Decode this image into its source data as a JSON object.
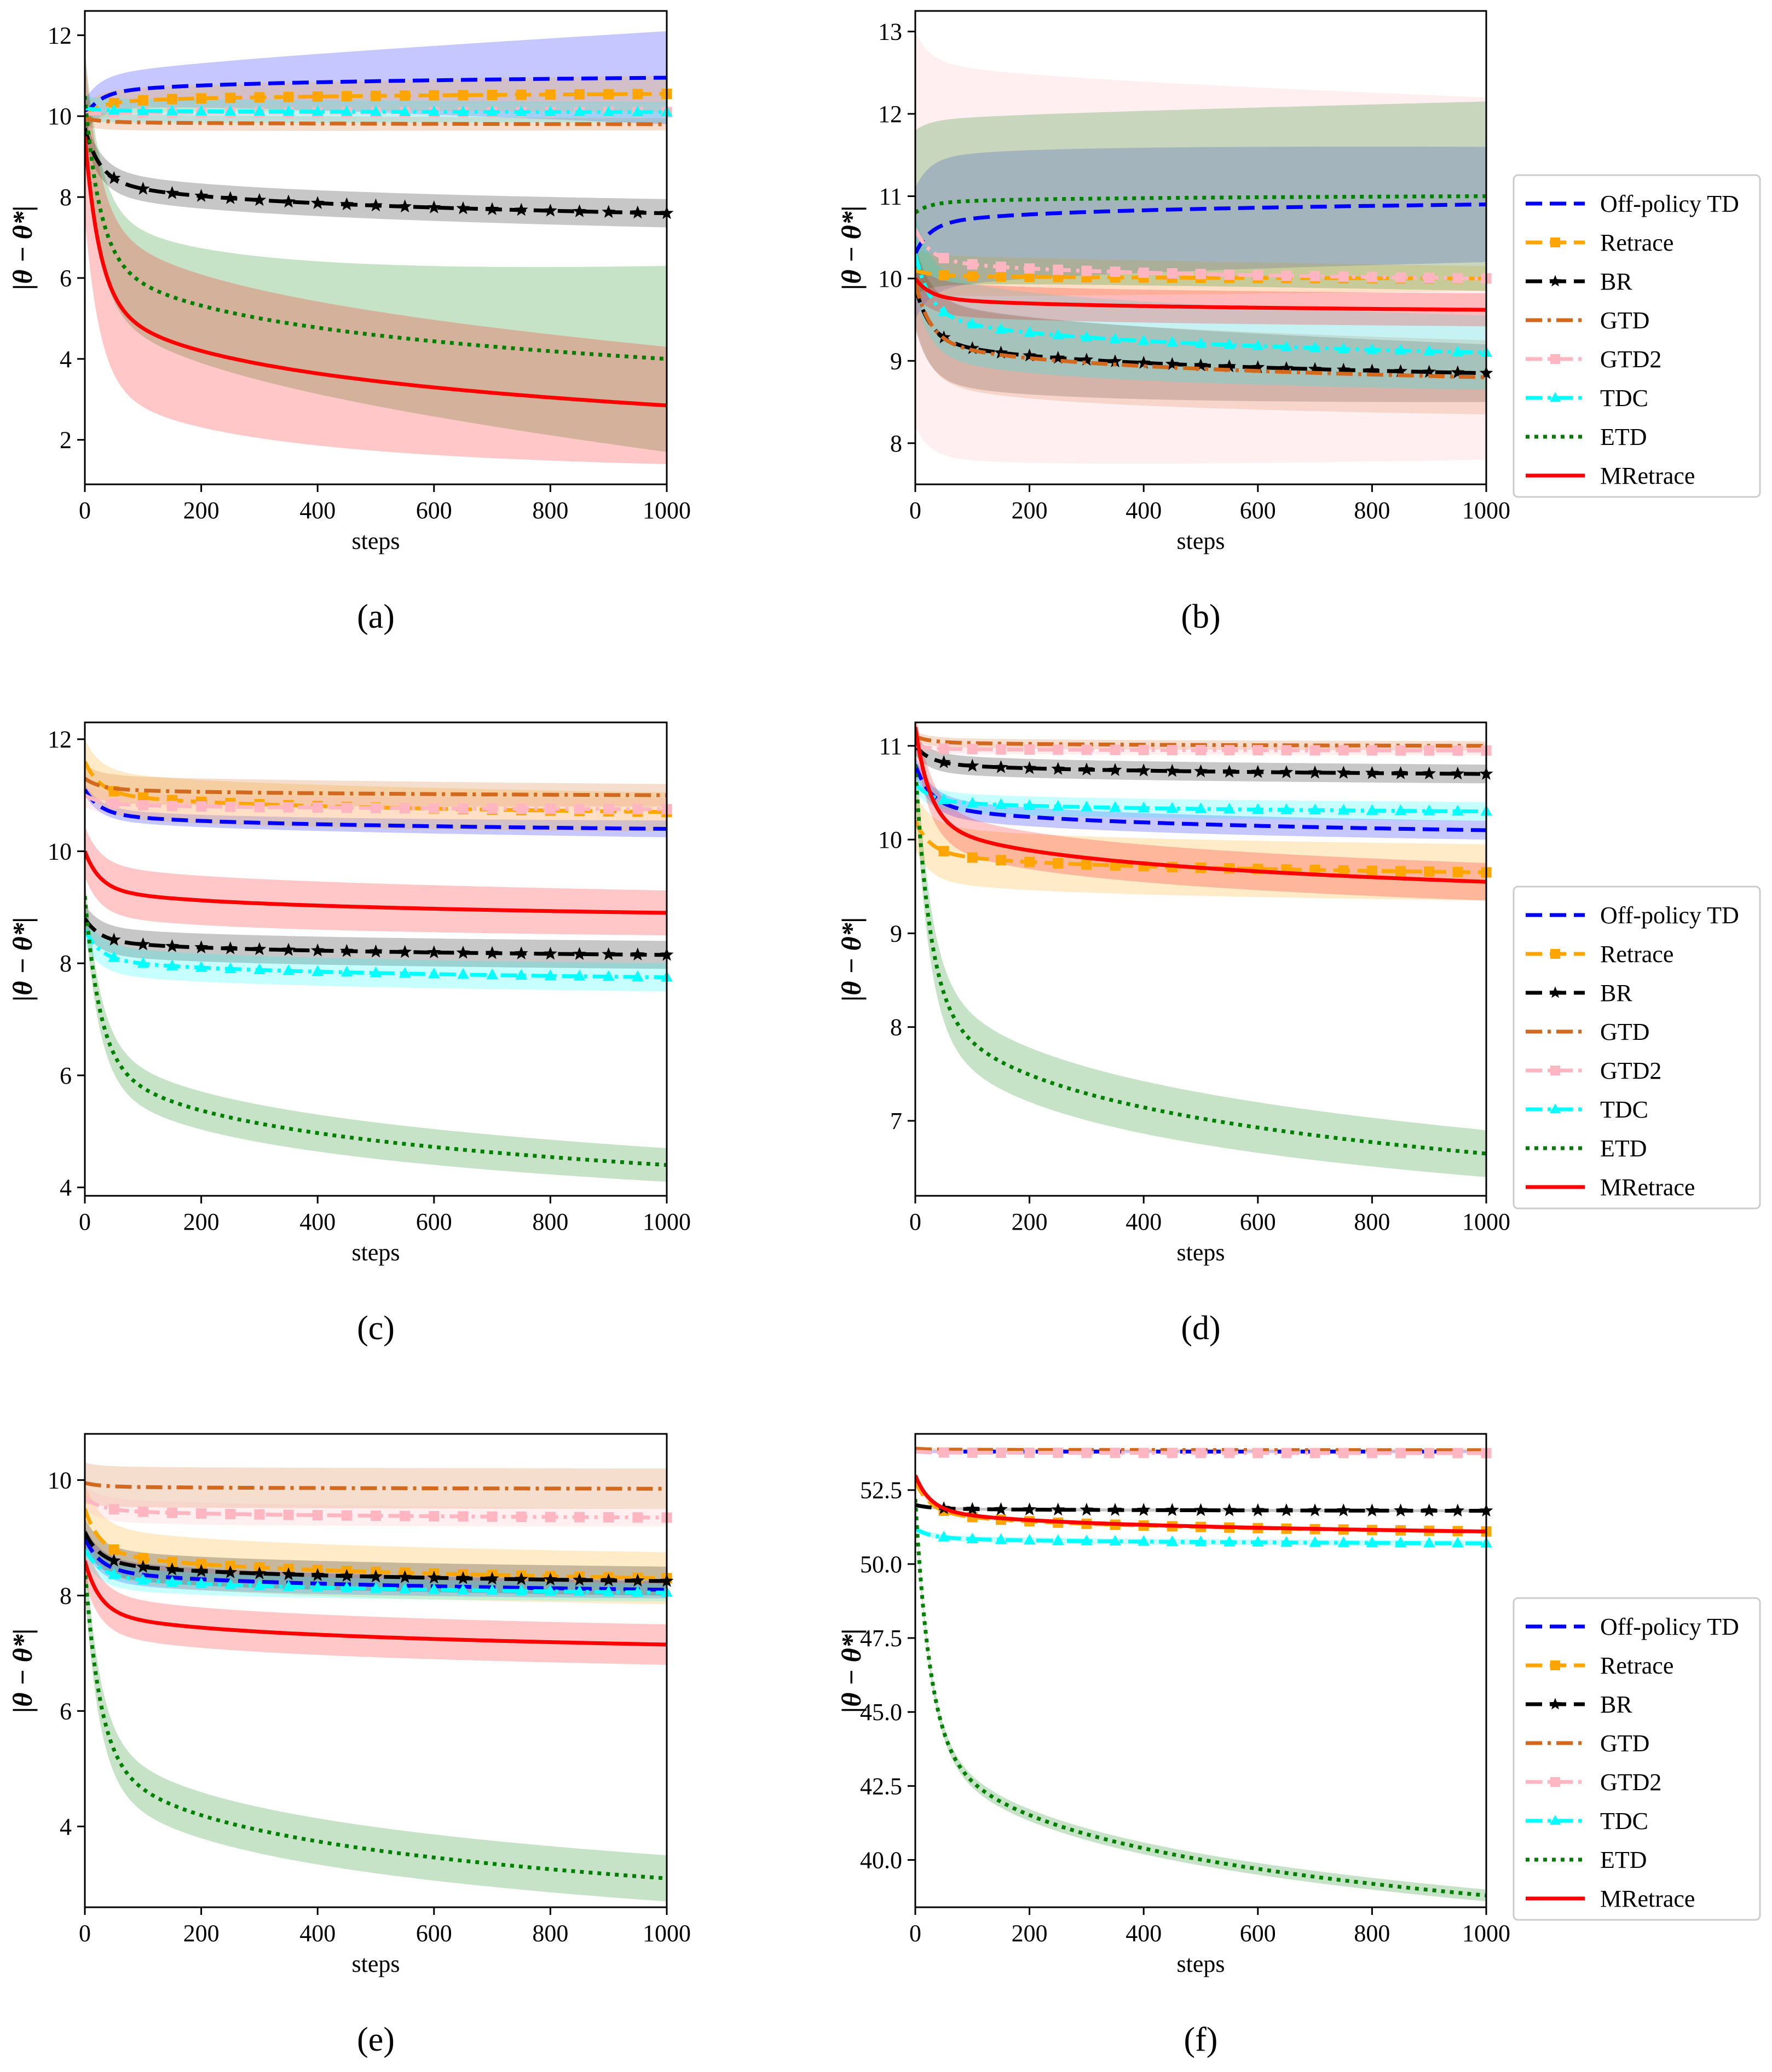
{
  "legend_entries": [
    {
      "name": "Off-policy TD",
      "color": "#0000ff",
      "style": "dashed",
      "marker": "none"
    },
    {
      "name": "Retrace",
      "color": "#ffa500",
      "style": "dashed",
      "marker": "square"
    },
    {
      "name": "BR",
      "color": "#000000",
      "style": "dashed",
      "marker": "star"
    },
    {
      "name": "GTD",
      "color": "#d2691e",
      "style": "dashdot",
      "marker": "none"
    },
    {
      "name": "GTD2",
      "color": "#ffb6c1",
      "style": "dashdot",
      "marker": "square"
    },
    {
      "name": "TDC",
      "color": "#00ffff",
      "style": "dashdot",
      "marker": "triangle"
    },
    {
      "name": "ETD",
      "color": "#008000",
      "style": "dotted",
      "marker": "none"
    },
    {
      "name": "MRetrace",
      "color": "#ff0000",
      "style": "solid",
      "marker": "none"
    }
  ],
  "chart_data": [
    {
      "type": "line",
      "panel_label": "(a)",
      "xlabel": "steps",
      "ylabel": "|θ − θ*|",
      "xlim": [
        0,
        1000
      ],
      "ylim": [
        0.9,
        12.6
      ],
      "xticks": [
        0,
        200,
        400,
        600,
        800,
        1000
      ],
      "yticks": [
        2,
        4,
        6,
        8,
        10,
        12
      ],
      "ytick_labels": [
        "2",
        "4",
        "6",
        "8",
        "10",
        "12"
      ],
      "legend": false,
      "series": [
        {
          "name": "Off-policy TD",
          "start": 10.0,
          "end": 10.95,
          "band": [
            0.4,
            1.15
          ]
        },
        {
          "name": "Retrace",
          "start": 10.0,
          "end": 10.55,
          "band": [
            0.3,
            0.45
          ]
        },
        {
          "name": "BR",
          "start": 9.7,
          "end": 7.6,
          "band": [
            0.3,
            0.35
          ]
        },
        {
          "name": "GTD",
          "start": 9.95,
          "end": 9.8,
          "band": [
            0.2,
            0.15
          ]
        },
        {
          "name": "GTD2",
          "start": 10.05,
          "end": 10.1,
          "band": [
            0.2,
            0.2
          ]
        },
        {
          "name": "TDC",
          "start": 10.2,
          "end": 10.1,
          "band": [
            0.3,
            0.25
          ]
        },
        {
          "name": "ETD",
          "start": 10.5,
          "end": 4.0,
          "band": [
            1.2,
            2.3
          ]
        },
        {
          "name": "MRetrace",
          "start": 9.5,
          "end": 2.85,
          "band": [
            2.0,
            1.45
          ]
        }
      ]
    },
    {
      "type": "line",
      "panel_label": "(b)",
      "xlabel": "steps",
      "ylabel": "|θ − θ*|",
      "xlim": [
        0,
        1000
      ],
      "ylim": [
        7.5,
        13.25
      ],
      "xticks": [
        0,
        200,
        400,
        600,
        800,
        1000
      ],
      "yticks": [
        8,
        9,
        10,
        11,
        12,
        13
      ],
      "ytick_labels": [
        "8",
        "9",
        "10",
        "11",
        "12",
        "13"
      ],
      "legend": true,
      "series": [
        {
          "name": "Off-policy TD",
          "start": 10.3,
          "end": 10.9,
          "band": [
            0.8,
            0.7
          ]
        },
        {
          "name": "Retrace",
          "start": 10.1,
          "end": 10.0,
          "band": [
            0.25,
            0.15
          ]
        },
        {
          "name": "BR",
          "start": 9.9,
          "end": 8.85,
          "band": [
            0.5,
            0.35
          ]
        },
        {
          "name": "GTD",
          "start": 9.95,
          "end": 8.8,
          "band": [
            0.5,
            0.45
          ]
        },
        {
          "name": "GTD2",
          "start": 10.6,
          "end": 10.0,
          "band": [
            2.4,
            2.2
          ]
        },
        {
          "name": "TDC",
          "start": 10.3,
          "end": 9.1,
          "band": [
            0.5,
            0.45
          ]
        },
        {
          "name": "ETD",
          "start": 10.8,
          "end": 11.0,
          "band": [
            1.0,
            1.15
          ]
        },
        {
          "name": "MRetrace",
          "start": 10.0,
          "end": 9.62,
          "band": [
            0.2,
            0.2
          ]
        }
      ]
    },
    {
      "type": "line",
      "panel_label": "(c)",
      "xlabel": "steps",
      "ylabel": "|θ − θ*|",
      "xlim": [
        0,
        1000
      ],
      "ylim": [
        3.85,
        12.3
      ],
      "xticks": [
        0,
        200,
        400,
        600,
        800,
        1000
      ],
      "yticks": [
        4,
        6,
        8,
        10,
        12
      ],
      "ytick_labels": [
        "4",
        "6",
        "8",
        "10",
        "12"
      ],
      "legend": false,
      "series": [
        {
          "name": "Off-policy TD",
          "start": 11.1,
          "end": 10.4,
          "band": [
            0.1,
            0.15
          ]
        },
        {
          "name": "Retrace",
          "start": 11.6,
          "end": 10.7,
          "band": [
            0.4,
            0.35
          ]
        },
        {
          "name": "BR",
          "start": 8.8,
          "end": 8.15,
          "band": [
            0.25,
            0.25
          ]
        },
        {
          "name": "GTD",
          "start": 11.3,
          "end": 11.0,
          "band": [
            0.25,
            0.2
          ]
        },
        {
          "name": "GTD2",
          "start": 11.0,
          "end": 10.75,
          "band": [
            0.2,
            0.2
          ]
        },
        {
          "name": "TDC",
          "start": 8.6,
          "end": 7.75,
          "band": [
            0.25,
            0.25
          ]
        },
        {
          "name": "ETD",
          "start": 9.2,
          "end": 4.4,
          "band": [
            0.35,
            0.3
          ]
        },
        {
          "name": "MRetrace",
          "start": 10.0,
          "end": 8.9,
          "band": [
            0.45,
            0.4
          ]
        }
      ]
    },
    {
      "type": "line",
      "panel_label": "(d)",
      "xlabel": "steps",
      "ylabel": "|θ − θ*|",
      "xlim": [
        0,
        1000
      ],
      "ylim": [
        6.2,
        11.25
      ],
      "xticks": [
        0,
        200,
        400,
        600,
        800,
        1000
      ],
      "yticks": [
        7,
        8,
        9,
        10,
        11
      ],
      "ytick_labels": [
        "7",
        "8",
        "9",
        "10",
        "11"
      ],
      "legend": true,
      "series": [
        {
          "name": "Off-policy TD",
          "start": 10.8,
          "end": 10.1,
          "band": [
            0.1,
            0.1
          ]
        },
        {
          "name": "Retrace",
          "start": 10.2,
          "end": 9.65,
          "band": [
            0.3,
            0.3
          ]
        },
        {
          "name": "BR",
          "start": 11.0,
          "end": 10.7,
          "band": [
            0.1,
            0.1
          ]
        },
        {
          "name": "GTD",
          "start": 11.1,
          "end": 11.0,
          "band": [
            0.05,
            0.05
          ]
        },
        {
          "name": "GTD2",
          "start": 11.0,
          "end": 10.95,
          "band": [
            0.05,
            0.05
          ]
        },
        {
          "name": "TDC",
          "start": 10.6,
          "end": 10.3,
          "band": [
            0.1,
            0.1
          ]
        },
        {
          "name": "ETD",
          "start": 10.8,
          "end": 6.65,
          "band": [
            0.3,
            0.25
          ]
        },
        {
          "name": "MRetrace",
          "start": 11.2,
          "end": 9.55,
          "band": [
            0.2,
            0.2
          ]
        }
      ]
    },
    {
      "type": "line",
      "panel_label": "(e)",
      "xlabel": "steps",
      "ylabel": "|θ − θ*|",
      "xlim": [
        0,
        1000
      ],
      "ylim": [
        2.6,
        10.8
      ],
      "xticks": [
        0,
        200,
        400,
        600,
        800,
        1000
      ],
      "yticks": [
        4,
        6,
        8,
        10
      ],
      "ytick_labels": [
        "4",
        "6",
        "8",
        "10"
      ],
      "legend": false,
      "series": [
        {
          "name": "Off-policy TD",
          "start": 9.0,
          "end": 8.1,
          "band": [
            0.2,
            0.15
          ]
        },
        {
          "name": "Retrace",
          "start": 9.5,
          "end": 8.3,
          "band": [
            0.45,
            0.45
          ]
        },
        {
          "name": "BR",
          "start": 9.1,
          "end": 8.25,
          "band": [
            0.25,
            0.25
          ]
        },
        {
          "name": "GTD",
          "start": 9.95,
          "end": 9.85,
          "band": [
            0.35,
            0.35
          ]
        },
        {
          "name": "GTD2",
          "start": 9.7,
          "end": 9.35,
          "band": [
            0.2,
            0.15
          ]
        },
        {
          "name": "TDC",
          "start": 8.8,
          "end": 8.05,
          "band": [
            0.2,
            0.15
          ]
        },
        {
          "name": "ETD",
          "start": 8.5,
          "end": 3.1,
          "band": [
            0.4,
            0.4
          ]
        },
        {
          "name": "MRetrace",
          "start": 8.6,
          "end": 7.15,
          "band": [
            0.35,
            0.35
          ]
        }
      ]
    },
    {
      "type": "line",
      "panel_label": "(f)",
      "xlabel": "steps",
      "ylabel": "|θ − θ*|",
      "xlim": [
        0,
        1000
      ],
      "ylim": [
        38.4,
        54.4
      ],
      "xticks": [
        0,
        200,
        400,
        600,
        800,
        1000
      ],
      "yticks": [
        40.0,
        42.5,
        45.0,
        47.5,
        50.0,
        52.5
      ],
      "ytick_labels": [
        "40.0",
        "42.5",
        "45.0",
        "47.5",
        "50.0",
        "52.5"
      ],
      "legend": true,
      "series": [
        {
          "name": "Off-policy TD",
          "start": 53.8,
          "end": 53.8,
          "band": [
            0.05,
            0.05
          ]
        },
        {
          "name": "Retrace",
          "start": 52.8,
          "end": 51.1,
          "band": [
            0.05,
            0.05
          ]
        },
        {
          "name": "BR",
          "start": 52.0,
          "end": 51.8,
          "band": [
            0.05,
            0.05
          ]
        },
        {
          "name": "GTD",
          "start": 53.9,
          "end": 53.85,
          "band": [
            0.05,
            0.05
          ]
        },
        {
          "name": "GTD2",
          "start": 53.8,
          "end": 53.75,
          "band": [
            0.05,
            0.05
          ]
        },
        {
          "name": "TDC",
          "start": 51.2,
          "end": 50.7,
          "band": [
            0.1,
            0.1
          ]
        },
        {
          "name": "ETD",
          "start": 52.2,
          "end": 38.8,
          "band": [
            0.2,
            0.2
          ]
        },
        {
          "name": "MRetrace",
          "start": 53.0,
          "end": 51.1,
          "band": [
            0.05,
            0.05
          ]
        }
      ]
    }
  ]
}
